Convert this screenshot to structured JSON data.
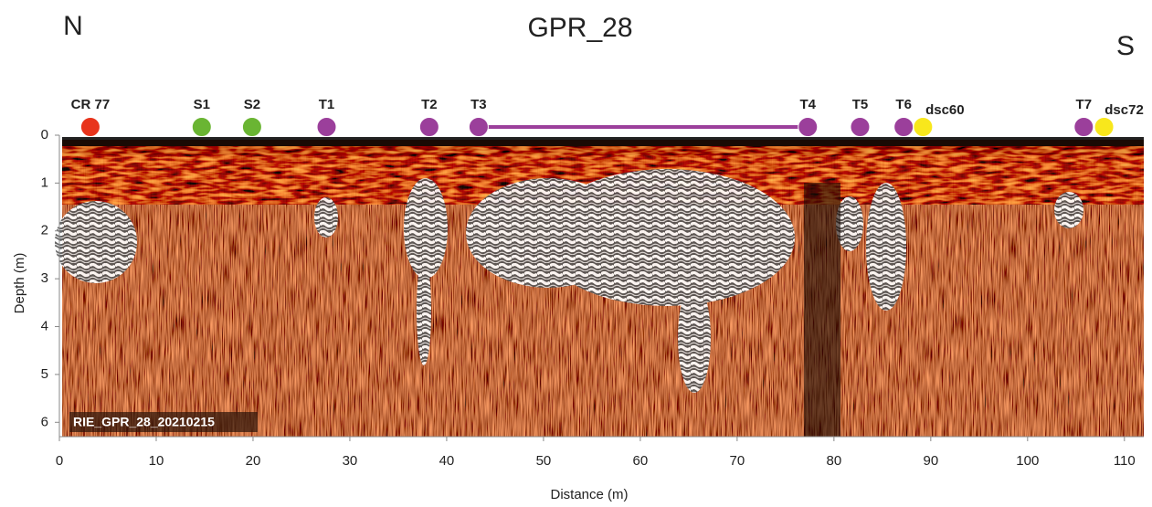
{
  "chart_data": {
    "type": "radargram",
    "title": "GPR_28",
    "left_label": "N",
    "right_label": "S",
    "xlabel": "Distance (m)",
    "ylabel": "Depth (m)",
    "annotation": "RIE_GPR_28_20210215",
    "xlim": [
      0,
      112
    ],
    "ylim": [
      0,
      6.3
    ],
    "xticks": [
      0,
      10,
      20,
      30,
      40,
      50,
      60,
      70,
      80,
      90,
      100,
      110
    ],
    "yticks": [
      0,
      1,
      2,
      3,
      4,
      5,
      6
    ],
    "markers": [
      {
        "name": "CR 77",
        "x": 3.2,
        "color": "#e8341c"
      },
      {
        "name": "S1",
        "x": 14.7,
        "color": "#6ab533"
      },
      {
        "name": "S2",
        "x": 19.9,
        "color": "#6ab533"
      },
      {
        "name": "T1",
        "x": 27.6,
        "color": "#9b3f9b"
      },
      {
        "name": "T2",
        "x": 38.2,
        "color": "#9b3f9b"
      },
      {
        "name": "T3",
        "x": 43.3,
        "color": "#9b3f9b"
      },
      {
        "name": "T4",
        "x": 77.3,
        "color": "#9b3f9b"
      },
      {
        "name": "T5",
        "x": 82.7,
        "color": "#9b3f9b"
      },
      {
        "name": "T6",
        "x": 87.2,
        "color": "#9b3f9b"
      },
      {
        "name": "dsc60",
        "x": 89.2,
        "color": "#f8e71c"
      },
      {
        "name": "T7",
        "x": 105.8,
        "color": "#9b3f9b"
      },
      {
        "name": "dsc72",
        "x": 107.9,
        "color": "#f8e71c"
      }
    ],
    "connect": [
      [
        5,
        6
      ]
    ],
    "connect_color": "#9b3f9b"
  }
}
